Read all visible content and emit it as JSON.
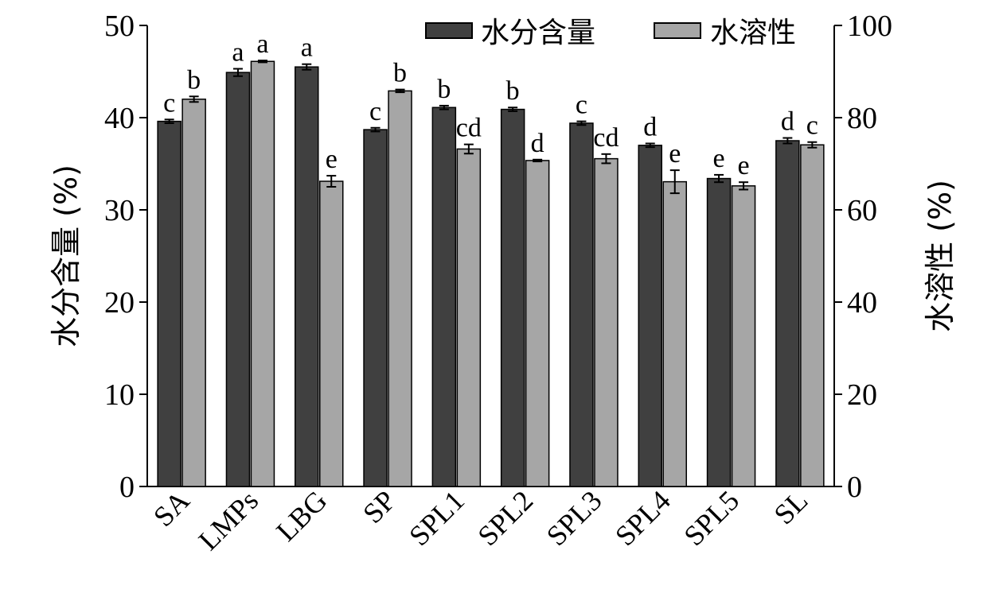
{
  "chart_data": {
    "type": "bar",
    "categories": [
      "SA",
      "LMPs",
      "LBG",
      "SP",
      "SPL1",
      "SPL2",
      "SPL3",
      "SPL4",
      "SPL5",
      "SL"
    ],
    "series": [
      {
        "name": "水分含量",
        "axis": "left",
        "color": "#404040",
        "values": [
          39.6,
          44.9,
          45.5,
          38.7,
          41.1,
          40.9,
          39.4,
          37.0,
          33.4,
          37.5
        ],
        "errors": [
          0.2,
          0.4,
          0.3,
          0.2,
          0.2,
          0.2,
          0.2,
          0.2,
          0.4,
          0.3
        ],
        "labels": [
          "c",
          "a",
          "a",
          "c",
          "b",
          "b",
          "c",
          "d",
          "e",
          "d"
        ]
      },
      {
        "name": "水溶性",
        "axis": "right",
        "color": "#a6a6a6",
        "values": [
          84.0,
          92.2,
          66.2,
          85.8,
          73.2,
          70.7,
          71.1,
          66.1,
          65.2,
          74.1
        ],
        "errors": [
          0.6,
          0.2,
          1.2,
          0.3,
          1.0,
          0.2,
          1.0,
          2.5,
          0.8,
          0.6
        ],
        "labels": [
          "b",
          "a",
          "e",
          "b",
          "cd",
          "d",
          "cd",
          "e",
          "e",
          "c"
        ]
      }
    ],
    "ylabel_left": "水分含量 (%)",
    "ylabel_right": "水溶性 (%)",
    "ylim_left": [
      0,
      50
    ],
    "ylim_right": [
      0,
      100
    ],
    "yticks_left": [
      "0",
      "10",
      "20",
      "30",
      "40",
      "50"
    ],
    "yticks_right": [
      "0",
      "20",
      "40",
      "60",
      "80",
      "100"
    ],
    "legend_position": "top-right",
    "grid": false
  }
}
